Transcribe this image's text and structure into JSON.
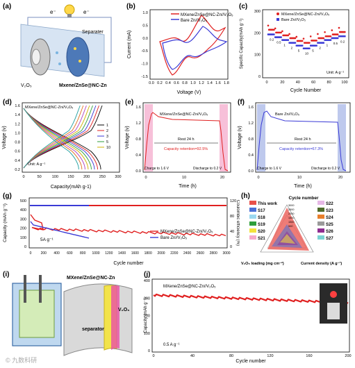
{
  "panels": {
    "a": {
      "label": "(a)",
      "separator": "Separater",
      "left_electrode": "V₂O₅",
      "right_electrode": "Mxene/ZnSe@NC-Zn",
      "electron": "e⁻"
    },
    "b": {
      "label": "(b)",
      "xlabel": "Voltage (V)",
      "ylabel": "Current (mA)",
      "legend": [
        "MXene/ZnSe@NC-Zn//V₂O₅",
        "Bare Zn//V₂O₅"
      ],
      "xticks": [
        "0.0",
        "0.2",
        "0.4",
        "0.6",
        "0.8",
        "1.0",
        "1.2",
        "1.4",
        "1.6",
        "1.8"
      ],
      "yticks": [
        "1.0",
        "0.5",
        "0.0",
        "-0.5",
        "-1.0",
        "-1.5"
      ]
    },
    "c": {
      "label": "(c)",
      "xlabel": "Cycle Number",
      "ylabel": "Specific Capacity(mAh g⁻¹)",
      "legend": [
        "MXene/ZnSe@NC-Zn//V₂O₅",
        "Bare Zn//V₂O₅"
      ],
      "unit_note": "Unit: A g⁻¹",
      "xticks": [
        "0",
        "20",
        "40",
        "60",
        "80",
        "100"
      ],
      "yticks": [
        "0",
        "100",
        "200",
        "300"
      ],
      "rate_labels": [
        "0.2",
        "0.5",
        "1",
        "2",
        "5",
        "10",
        "5",
        "2",
        "1",
        "0.5",
        "0.2"
      ]
    },
    "d": {
      "label": "(d)",
      "xlabel": "Capacity(mAh g-1)",
      "ylabel": "Voltage (v)",
      "title": "MXene/ZnSe@NC-Zn//V₂O₅",
      "unit_note": "Unit: A g⁻¹",
      "legend": [
        "1",
        "2",
        "3",
        "5",
        "10"
      ],
      "xticks": [
        "0",
        "50",
        "100",
        "150",
        "200",
        "250",
        "300"
      ],
      "yticks": [
        "0.2",
        "0.4",
        "0.6",
        "0.8",
        "1.0",
        "1.2",
        "1.4",
        "1.6"
      ]
    },
    "e": {
      "label": "(e)",
      "xlabel": "Time (h)",
      "ylabel": "Voltage (v)",
      "title": "MXene/ZnSe@NC-Zn//V₂O₅",
      "rest": "Rest 24 h",
      "retention": "Capacity retention=92.5%",
      "charge": "Charge to 1.6 V",
      "discharge": "Discharge to 0.2 V",
      "xticks": [
        "0",
        "10",
        "20"
      ],
      "yticks": [
        "0.0",
        "0.4",
        "0.8",
        "1.2",
        "1.6"
      ]
    },
    "f": {
      "label": "(f)",
      "xlabel": "Time (h)",
      "ylabel": "Voltage (v)",
      "title": "Bare Zn//V₂O₅",
      "rest": "Rest 24 h",
      "retention": "Capacity retention=67.3%",
      "charge": "Charge to 1.6 V",
      "discharge": "Discharge to 0.2 V",
      "xticks": [
        "0",
        "10",
        "20"
      ],
      "yticks": [
        "0.0",
        "0.4",
        "0.8",
        "1.2",
        "1.6"
      ]
    },
    "g": {
      "label": "(g)",
      "xlabel": "Cycle number",
      "ylabel": "Capacity (mAh g⁻¹)",
      "y2label": "Coulombic efficiency (%)",
      "rate": "5A g⁻¹",
      "legend": [
        "MXene/ZnSe@NC-Zn//V₂O₅",
        "Bare Zn//V₂O₅"
      ],
      "xticks": [
        "0",
        "200",
        "400",
        "600",
        "800",
        "1000",
        "1200",
        "1400",
        "1600",
        "1800",
        "2000",
        "2200",
        "2400",
        "2600",
        "2800",
        "3000"
      ],
      "yticks": [
        "0",
        "100",
        "200",
        "300",
        "400",
        "500"
      ],
      "y2ticks": [
        "0",
        "40",
        "80",
        "120"
      ]
    },
    "h": {
      "label": "(h)",
      "axis_top": "Cycle number",
      "axis_left": "V₂O₅ loading (mg cm⁻²)",
      "axis_right": "Current density (A g⁻¹)",
      "ticks": [
        "3000",
        "2500",
        "2000",
        "1500",
        "1000",
        "500"
      ],
      "legend": [
        "This work",
        "S17",
        "S18",
        "S19",
        "S20",
        "S21",
        "S22",
        "S23",
        "S24",
        "S25",
        "S26",
        "S27"
      ],
      "colors": [
        "#e8504a",
        "#4b6fd6",
        "#9bd8f0",
        "#2e9e3a",
        "#f4e23c",
        "#f6a9c9",
        "#e6b8e6",
        "#4d6b2b",
        "#e87f2c",
        "#9a9a9a",
        "#8e2d91",
        "#7ad3d3"
      ]
    },
    "i": {
      "label": "(i)",
      "top_label": "MXene/ZnSe@NC-Zn",
      "cathode": "V₂O₅",
      "separator": "separator"
    },
    "j": {
      "label": "(j)",
      "title": "MXene/ZnSe@NC-Zn//V₂O₅",
      "xlabel": "Cycle number",
      "ylabel": "Capacity (mAh g⁻¹)",
      "rate": "0.5 A g⁻¹",
      "xticks": [
        "0",
        "40",
        "80",
        "120",
        "160",
        "200"
      ],
      "yticks": [
        "0",
        "100",
        "200",
        "300",
        "400"
      ]
    }
  },
  "watermark": "© 九数科研"
}
